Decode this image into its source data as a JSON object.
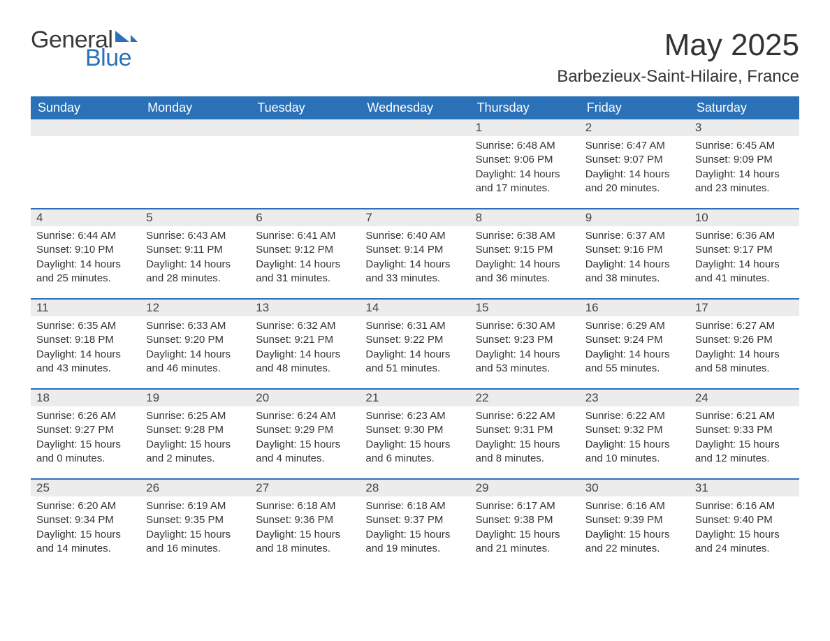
{
  "brand": {
    "name_part1": "General",
    "name_part2": "Blue",
    "colors": {
      "text_dark": "#3a3a3a",
      "accent": "#2a71b8"
    }
  },
  "header": {
    "title": "May 2025",
    "location": "Barbezieux-Saint-Hilaire, France"
  },
  "calendar": {
    "day_headers": [
      "Sunday",
      "Monday",
      "Tuesday",
      "Wednesday",
      "Thursday",
      "Friday",
      "Saturday"
    ],
    "header_bg": "#2a71b8",
    "header_text_color": "#ffffff",
    "daynum_bg": "#ececec",
    "daynum_border_color": "#2a71b8",
    "text_color": "#333333",
    "weeks": [
      [
        null,
        null,
        null,
        null,
        {
          "day": "1",
          "sunrise": "Sunrise: 6:48 AM",
          "sunset": "Sunset: 9:06 PM",
          "daylight": "Daylight: 14 hours and 17 minutes."
        },
        {
          "day": "2",
          "sunrise": "Sunrise: 6:47 AM",
          "sunset": "Sunset: 9:07 PM",
          "daylight": "Daylight: 14 hours and 20 minutes."
        },
        {
          "day": "3",
          "sunrise": "Sunrise: 6:45 AM",
          "sunset": "Sunset: 9:09 PM",
          "daylight": "Daylight: 14 hours and 23 minutes."
        }
      ],
      [
        {
          "day": "4",
          "sunrise": "Sunrise: 6:44 AM",
          "sunset": "Sunset: 9:10 PM",
          "daylight": "Daylight: 14 hours and 25 minutes."
        },
        {
          "day": "5",
          "sunrise": "Sunrise: 6:43 AM",
          "sunset": "Sunset: 9:11 PM",
          "daylight": "Daylight: 14 hours and 28 minutes."
        },
        {
          "day": "6",
          "sunrise": "Sunrise: 6:41 AM",
          "sunset": "Sunset: 9:12 PM",
          "daylight": "Daylight: 14 hours and 31 minutes."
        },
        {
          "day": "7",
          "sunrise": "Sunrise: 6:40 AM",
          "sunset": "Sunset: 9:14 PM",
          "daylight": "Daylight: 14 hours and 33 minutes."
        },
        {
          "day": "8",
          "sunrise": "Sunrise: 6:38 AM",
          "sunset": "Sunset: 9:15 PM",
          "daylight": "Daylight: 14 hours and 36 minutes."
        },
        {
          "day": "9",
          "sunrise": "Sunrise: 6:37 AM",
          "sunset": "Sunset: 9:16 PM",
          "daylight": "Daylight: 14 hours and 38 minutes."
        },
        {
          "day": "10",
          "sunrise": "Sunrise: 6:36 AM",
          "sunset": "Sunset: 9:17 PM",
          "daylight": "Daylight: 14 hours and 41 minutes."
        }
      ],
      [
        {
          "day": "11",
          "sunrise": "Sunrise: 6:35 AM",
          "sunset": "Sunset: 9:18 PM",
          "daylight": "Daylight: 14 hours and 43 minutes."
        },
        {
          "day": "12",
          "sunrise": "Sunrise: 6:33 AM",
          "sunset": "Sunset: 9:20 PM",
          "daylight": "Daylight: 14 hours and 46 minutes."
        },
        {
          "day": "13",
          "sunrise": "Sunrise: 6:32 AM",
          "sunset": "Sunset: 9:21 PM",
          "daylight": "Daylight: 14 hours and 48 minutes."
        },
        {
          "day": "14",
          "sunrise": "Sunrise: 6:31 AM",
          "sunset": "Sunset: 9:22 PM",
          "daylight": "Daylight: 14 hours and 51 minutes."
        },
        {
          "day": "15",
          "sunrise": "Sunrise: 6:30 AM",
          "sunset": "Sunset: 9:23 PM",
          "daylight": "Daylight: 14 hours and 53 minutes."
        },
        {
          "day": "16",
          "sunrise": "Sunrise: 6:29 AM",
          "sunset": "Sunset: 9:24 PM",
          "daylight": "Daylight: 14 hours and 55 minutes."
        },
        {
          "day": "17",
          "sunrise": "Sunrise: 6:27 AM",
          "sunset": "Sunset: 9:26 PM",
          "daylight": "Daylight: 14 hours and 58 minutes."
        }
      ],
      [
        {
          "day": "18",
          "sunrise": "Sunrise: 6:26 AM",
          "sunset": "Sunset: 9:27 PM",
          "daylight": "Daylight: 15 hours and 0 minutes."
        },
        {
          "day": "19",
          "sunrise": "Sunrise: 6:25 AM",
          "sunset": "Sunset: 9:28 PM",
          "daylight": "Daylight: 15 hours and 2 minutes."
        },
        {
          "day": "20",
          "sunrise": "Sunrise: 6:24 AM",
          "sunset": "Sunset: 9:29 PM",
          "daylight": "Daylight: 15 hours and 4 minutes."
        },
        {
          "day": "21",
          "sunrise": "Sunrise: 6:23 AM",
          "sunset": "Sunset: 9:30 PM",
          "daylight": "Daylight: 15 hours and 6 minutes."
        },
        {
          "day": "22",
          "sunrise": "Sunrise: 6:22 AM",
          "sunset": "Sunset: 9:31 PM",
          "daylight": "Daylight: 15 hours and 8 minutes."
        },
        {
          "day": "23",
          "sunrise": "Sunrise: 6:22 AM",
          "sunset": "Sunset: 9:32 PM",
          "daylight": "Daylight: 15 hours and 10 minutes."
        },
        {
          "day": "24",
          "sunrise": "Sunrise: 6:21 AM",
          "sunset": "Sunset: 9:33 PM",
          "daylight": "Daylight: 15 hours and 12 minutes."
        }
      ],
      [
        {
          "day": "25",
          "sunrise": "Sunrise: 6:20 AM",
          "sunset": "Sunset: 9:34 PM",
          "daylight": "Daylight: 15 hours and 14 minutes."
        },
        {
          "day": "26",
          "sunrise": "Sunrise: 6:19 AM",
          "sunset": "Sunset: 9:35 PM",
          "daylight": "Daylight: 15 hours and 16 minutes."
        },
        {
          "day": "27",
          "sunrise": "Sunrise: 6:18 AM",
          "sunset": "Sunset: 9:36 PM",
          "daylight": "Daylight: 15 hours and 18 minutes."
        },
        {
          "day": "28",
          "sunrise": "Sunrise: 6:18 AM",
          "sunset": "Sunset: 9:37 PM",
          "daylight": "Daylight: 15 hours and 19 minutes."
        },
        {
          "day": "29",
          "sunrise": "Sunrise: 6:17 AM",
          "sunset": "Sunset: 9:38 PM",
          "daylight": "Daylight: 15 hours and 21 minutes."
        },
        {
          "day": "30",
          "sunrise": "Sunrise: 6:16 AM",
          "sunset": "Sunset: 9:39 PM",
          "daylight": "Daylight: 15 hours and 22 minutes."
        },
        {
          "day": "31",
          "sunrise": "Sunrise: 6:16 AM",
          "sunset": "Sunset: 9:40 PM",
          "daylight": "Daylight: 15 hours and 24 minutes."
        }
      ]
    ]
  }
}
